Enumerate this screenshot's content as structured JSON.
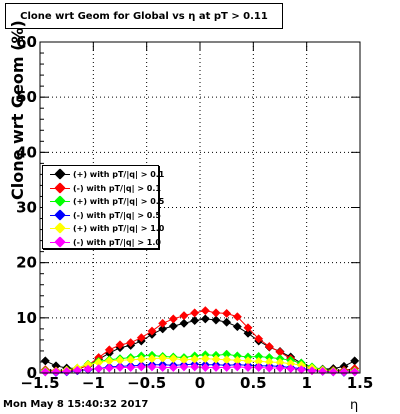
{
  "title": "Clone wrt Geom for Global vs  η at pT > 0.11",
  "timestamp": "Mon May  8 15:40:32 2017",
  "chart_data": {
    "type": "scatter",
    "xlabel": "η",
    "ylabel": "Clone wrt Geom (%)",
    "xlim": [
      -1.5,
      1.5
    ],
    "ylim": [
      0,
      60
    ],
    "x_ticks": [
      -1.5,
      -1,
      -0.5,
      0,
      0.5,
      1,
      1.5
    ],
    "x_tick_labels": [
      "−1.5",
      "−1",
      "−0.5",
      "0",
      "0.5",
      "1",
      "1.5"
    ],
    "y_ticks": [
      0,
      10,
      20,
      30,
      40,
      50,
      60
    ],
    "y_tick_labels": [
      "0",
      "10",
      "20",
      "30",
      "40",
      "50",
      "60"
    ],
    "grid": true,
    "legend_position": "middle-left",
    "x": [
      -1.45,
      -1.35,
      -1.25,
      -1.15,
      -1.05,
      -0.95,
      -0.85,
      -0.75,
      -0.65,
      -0.55,
      -0.45,
      -0.35,
      -0.25,
      -0.15,
      -0.05,
      0.05,
      0.15,
      0.25,
      0.35,
      0.45,
      0.55,
      0.65,
      0.75,
      0.85,
      0.95,
      1.05,
      1.15,
      1.25,
      1.35,
      1.45
    ],
    "series": [
      {
        "name": "(+) with pT/|q| > 0.1",
        "color": "#000000",
        "values": [
          2.2,
          1.3,
          0.9,
          0.8,
          1.3,
          2.5,
          3.6,
          4.6,
          5.0,
          5.8,
          7.0,
          8.0,
          8.5,
          9.0,
          9.5,
          9.8,
          9.6,
          9.2,
          8.4,
          7.2,
          5.8,
          4.7,
          3.9,
          2.9,
          1.8,
          1.0,
          0.7,
          0.8,
          1.2,
          2.2
        ]
      },
      {
        "name": "(-) with pT/|q| > 0.1",
        "color": "#ff0000",
        "values": [
          0.6,
          0.4,
          0.4,
          0.6,
          1.4,
          2.8,
          4.2,
          5.1,
          5.5,
          6.4,
          7.6,
          9.0,
          9.8,
          10.4,
          10.9,
          11.3,
          10.9,
          10.8,
          10.2,
          8.2,
          6.2,
          4.8,
          3.8,
          2.6,
          1.5,
          0.8,
          0.6,
          0.5,
          0.5,
          0.8
        ]
      },
      {
        "name": "(+) with pT/|q| > 0.5",
        "color": "#00ff00",
        "values": [
          0.4,
          0.3,
          0.5,
          0.9,
          1.6,
          2.1,
          2.4,
          2.6,
          2.8,
          3.1,
          3.2,
          3.0,
          2.9,
          2.8,
          3.1,
          3.3,
          3.2,
          3.4,
          3.1,
          2.9,
          3.0,
          2.8,
          2.6,
          2.3,
          1.8,
          1.1,
          0.6,
          0.4,
          0.3,
          0.4
        ]
      },
      {
        "name": "(-) with pT/|q| > 0.5",
        "color": "#0000ff",
        "values": [
          0.2,
          0.1,
          0.2,
          0.4,
          0.6,
          0.8,
          1.1,
          1.2,
          1.3,
          1.4,
          1.5,
          1.5,
          1.4,
          1.5,
          1.6,
          1.5,
          1.5,
          1.4,
          1.5,
          1.4,
          1.3,
          1.3,
          1.2,
          1.0,
          0.8,
          0.5,
          0.3,
          0.2,
          0.1,
          0.2
        ]
      },
      {
        "name": "(+) with pT/|q| > 1.0",
        "color": "#ffff00",
        "values": [
          0.3,
          0.3,
          0.5,
          0.9,
          1.5,
          1.9,
          2.2,
          2.3,
          2.4,
          2.5,
          2.6,
          2.7,
          2.6,
          2.4,
          2.5,
          2.6,
          2.5,
          2.4,
          2.3,
          2.2,
          2.1,
          2.0,
          1.9,
          1.7,
          1.4,
          0.9,
          0.5,
          0.3,
          0.2,
          0.3
        ]
      },
      {
        "name": "(-) with pT/|q| > 1.0",
        "color": "#ff00ff",
        "values": [
          0.2,
          0.2,
          0.3,
          0.5,
          0.7,
          0.8,
          0.9,
          1.0,
          1.0,
          1.1,
          1.1,
          1.0,
          1.0,
          1.1,
          1.1,
          1.0,
          1.0,
          1.0,
          1.1,
          1.0,
          1.0,
          0.9,
          0.9,
          0.8,
          0.6,
          0.4,
          0.3,
          0.2,
          0.2,
          0.2
        ]
      }
    ]
  }
}
